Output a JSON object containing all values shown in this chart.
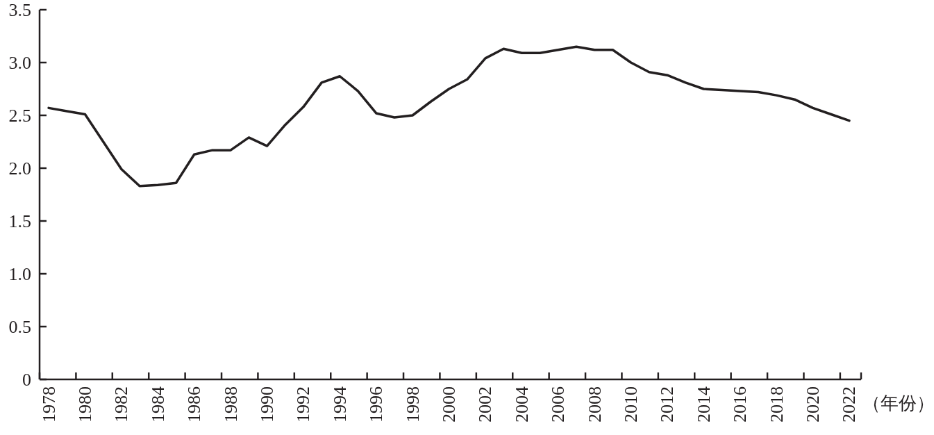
{
  "chart_data": {
    "type": "line",
    "xlabel": "（年份）",
    "categories": [
      "1978",
      null,
      "1980",
      null,
      "1982",
      null,
      "1984",
      null,
      "1986",
      null,
      "1988",
      null,
      "1990",
      null,
      "1992",
      null,
      "1994",
      null,
      "1996",
      null,
      "1998",
      null,
      "2000",
      null,
      "2002",
      null,
      "2004",
      null,
      "2006",
      null,
      "2008",
      null,
      "2010",
      null,
      "2012",
      null,
      "2014",
      null,
      "2016",
      null,
      "2018",
      null,
      "2020",
      null,
      "2022"
    ],
    "series": [
      {
        "color": "#231f20",
        "values": [
          2.57,
          2.54,
          2.51,
          2.25,
          1.99,
          1.83,
          1.84,
          1.86,
          2.13,
          2.17,
          2.17,
          2.29,
          2.21,
          2.41,
          2.58,
          2.81,
          2.87,
          2.73,
          2.52,
          2.48,
          2.5,
          2.63,
          2.75,
          2.84,
          3.04,
          3.13,
          3.09,
          3.09,
          3.12,
          3.15,
          3.12,
          3.12,
          3.0,
          2.91,
          2.88,
          2.81,
          2.75,
          2.74,
          2.73,
          2.72,
          2.69,
          2.65,
          2.57,
          2.51,
          2.45
        ]
      }
    ],
    "ylim": [
      0,
      3.5
    ],
    "yticks": [
      0,
      0.5,
      {
        "value": 1,
        "label": "1.0"
      },
      1.5,
      {
        "value": 2,
        "label": "2.0"
      },
      2.5,
      {
        "value": 3,
        "label": "3.0"
      },
      3.5
    ],
    "line_style": "solid"
  }
}
